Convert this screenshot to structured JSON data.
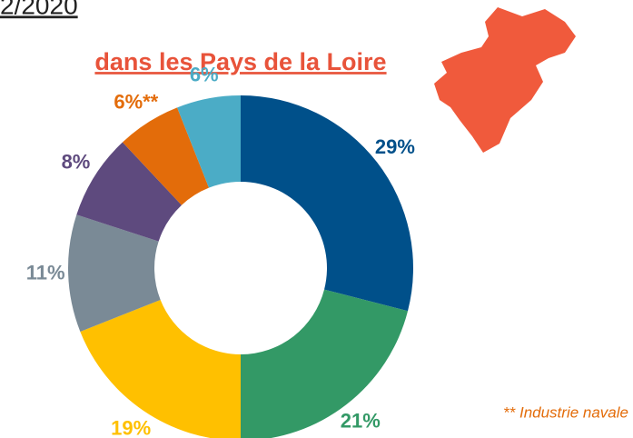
{
  "header": {
    "date": "2/2020",
    "title": "dans les Pays de la Loire"
  },
  "chart_data": {
    "type": "donut",
    "values": [
      29,
      21,
      19,
      11,
      8,
      6,
      6
    ],
    "value_labels": [
      "29%",
      "21%",
      "19%",
      "11%",
      "8%",
      "6%**",
      "6%"
    ],
    "colors": [
      "#00508a",
      "#339966",
      "#ffc000",
      "#7a8a96",
      "#5e4a7e",
      "#e36c0a",
      "#4bacc6"
    ]
  },
  "footnote": "** Industrie navale"
}
